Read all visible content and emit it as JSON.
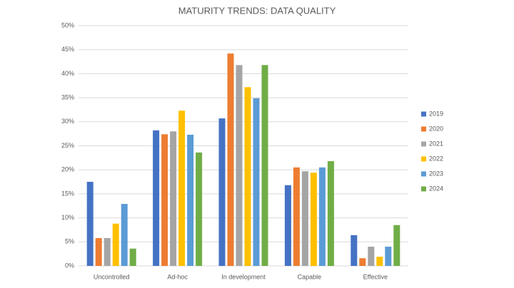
{
  "chart_data": {
    "type": "bar",
    "title": "MATURITY TRENDS: DATA QUALITY",
    "categories": [
      "Uncontrolled",
      "Ad-hoc",
      "In development",
      "Capable",
      "Effective"
    ],
    "series": [
      {
        "name": "2019",
        "color": "#4472c4",
        "values": [
          17.5,
          28.2,
          30.7,
          16.8,
          6.4
        ]
      },
      {
        "name": "2020",
        "color": "#ed7d31",
        "values": [
          5.8,
          27.4,
          44.2,
          20.5,
          1.6
        ]
      },
      {
        "name": "2021",
        "color": "#a5a5a5",
        "values": [
          5.8,
          28.0,
          41.8,
          19.7,
          4.0
        ]
      },
      {
        "name": "2022",
        "color": "#ffc000",
        "values": [
          8.8,
          32.3,
          37.2,
          19.4,
          1.9
        ]
      },
      {
        "name": "2023",
        "color": "#5b9bd5",
        "values": [
          12.9,
          27.3,
          34.9,
          20.5,
          4.0
        ]
      },
      {
        "name": "2024",
        "color": "#70ad47",
        "values": [
          3.6,
          23.6,
          41.8,
          21.8,
          8.5
        ]
      }
    ],
    "ylim": [
      0,
      50
    ],
    "yticks": [
      {
        "value": 0,
        "label": "0%"
      },
      {
        "value": 5,
        "label": "5%"
      },
      {
        "value": 10,
        "label": "10%"
      },
      {
        "value": 15,
        "label": "15%"
      },
      {
        "value": 20,
        "label": "20%"
      },
      {
        "value": 25,
        "label": "25%"
      },
      {
        "value": 30,
        "label": "30%"
      },
      {
        "value": 35,
        "label": "35%"
      },
      {
        "value": 40,
        "label": "40%"
      },
      {
        "value": 45,
        "label": "45%"
      },
      {
        "value": 50,
        "label": "50%"
      }
    ],
    "grid": true,
    "legend": "right"
  }
}
